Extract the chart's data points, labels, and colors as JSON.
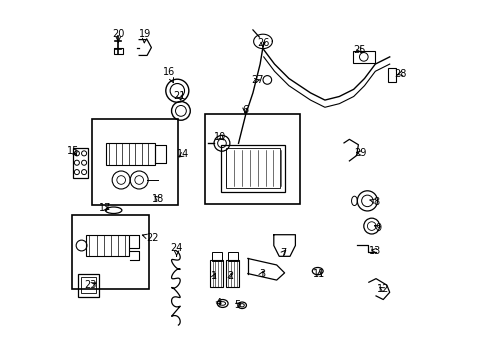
{
  "bg_color": "#ffffff",
  "line_color": "#000000",
  "text_color": "#000000",
  "label_positions": {
    "20": [
      0.148,
      0.905,
      0.148,
      0.882
    ],
    "19": [
      0.222,
      0.905,
      0.22,
      0.878
    ],
    "16": [
      0.288,
      0.8,
      0.302,
      0.768
    ],
    "21": [
      0.318,
      0.732,
      0.326,
      0.712
    ],
    "15": [
      0.022,
      0.58,
      0.04,
      0.56
    ],
    "14": [
      0.328,
      0.572,
      0.308,
      0.558
    ],
    "17": [
      0.112,
      0.422,
      0.132,
      0.415
    ],
    "18": [
      0.258,
      0.448,
      0.242,
      0.462
    ],
    "22": [
      0.244,
      0.338,
      0.212,
      0.348
    ],
    "23": [
      0.072,
      0.208,
      0.096,
      0.218
    ],
    "24": [
      0.31,
      0.31,
      0.31,
      0.288
    ],
    "6": [
      0.5,
      0.695,
      0.5,
      0.677
    ],
    "10": [
      0.432,
      0.62,
      0.448,
      0.604
    ],
    "1": [
      0.414,
      0.232,
      0.422,
      0.25
    ],
    "2": [
      0.46,
      0.232,
      0.464,
      0.25
    ],
    "3": [
      0.547,
      0.24,
      0.555,
      0.255
    ],
    "4": [
      0.426,
      0.158,
      0.436,
      0.165
    ],
    "5": [
      0.48,
      0.154,
      0.49,
      0.16
    ],
    "7": [
      0.607,
      0.298,
      0.615,
      0.307
    ],
    "8": [
      0.864,
      0.44,
      0.845,
      0.445
    ],
    "9": [
      0.87,
      0.368,
      0.857,
      0.375
    ],
    "11": [
      0.707,
      0.24,
      0.708,
      0.25
    ],
    "12": [
      0.884,
      0.196,
      0.872,
      0.203
    ],
    "13": [
      0.862,
      0.304,
      0.849,
      0.306
    ],
    "25": [
      0.819,
      0.86,
      0.829,
      0.847
    ],
    "26": [
      0.55,
      0.88,
      0.55,
      0.867
    ],
    "27": [
      0.534,
      0.777,
      0.55,
      0.78
    ],
    "28": [
      0.932,
      0.795,
      0.922,
      0.792
    ],
    "29": [
      0.822,
      0.575,
      0.807,
      0.577
    ]
  }
}
